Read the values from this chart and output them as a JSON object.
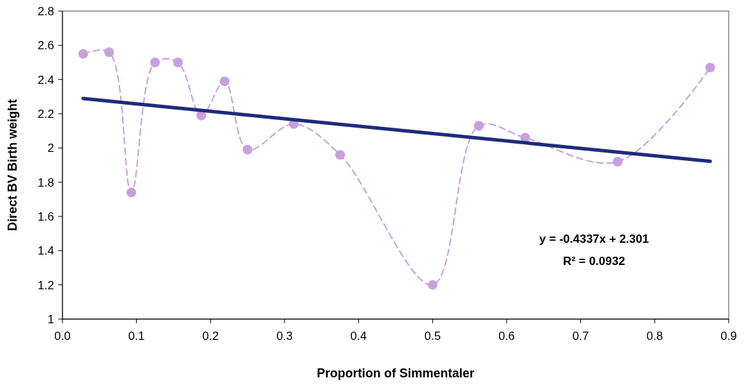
{
  "chart_data": {
    "type": "line",
    "xlabel": "Proportion of Simmentaler",
    "ylabel": "Direct BV Birth weight",
    "xlim": [
      0,
      0.9
    ],
    "xticks": [
      {
        "value": 0,
        "label": "0.0"
      },
      {
        "value": 0.1,
        "label": "0.1"
      },
      {
        "value": 0.2,
        "label": "0.2"
      },
      {
        "value": 0.3,
        "label": "0.3"
      },
      {
        "value": 0.4,
        "label": "0.4"
      },
      {
        "value": 0.5,
        "label": "0.5"
      },
      {
        "value": 0.6,
        "label": "0.6"
      },
      {
        "value": 0.7,
        "label": "0.7"
      },
      {
        "value": 0.8,
        "label": "0.8"
      },
      {
        "value": 0.9,
        "label": "0.9"
      }
    ],
    "ylim": [
      1,
      2.8
    ],
    "yticks": [
      1,
      1.2,
      1.4,
      1.6,
      1.8,
      2,
      2.2,
      2.4,
      2.6,
      2.8
    ],
    "grid": false,
    "series": [
      {
        "color": "#c9a0dc",
        "marker": "circle",
        "line_style": "dashed",
        "x": [
          0.028,
          0.063,
          0.093,
          0.125,
          0.156,
          0.1875,
          0.219,
          0.25,
          0.3125,
          0.375,
          0.5,
          0.5625,
          0.625,
          0.75,
          0.875
        ],
        "values": [
          2.55,
          2.56,
          1.74,
          2.5,
          2.5,
          2.19,
          2.39,
          1.99,
          2.14,
          1.96,
          1.2,
          2.13,
          2.06,
          1.92,
          2.47
        ]
      },
      {
        "color": "#1f2a7a",
        "marker": "none",
        "line_style": "solid",
        "x": [
          0.028,
          0.875
        ],
        "values": [
          2.289,
          1.922
        ]
      }
    ],
    "annotations": [
      "y = -0.4337x + 2.301",
      "R² = 0.0932"
    ]
  }
}
